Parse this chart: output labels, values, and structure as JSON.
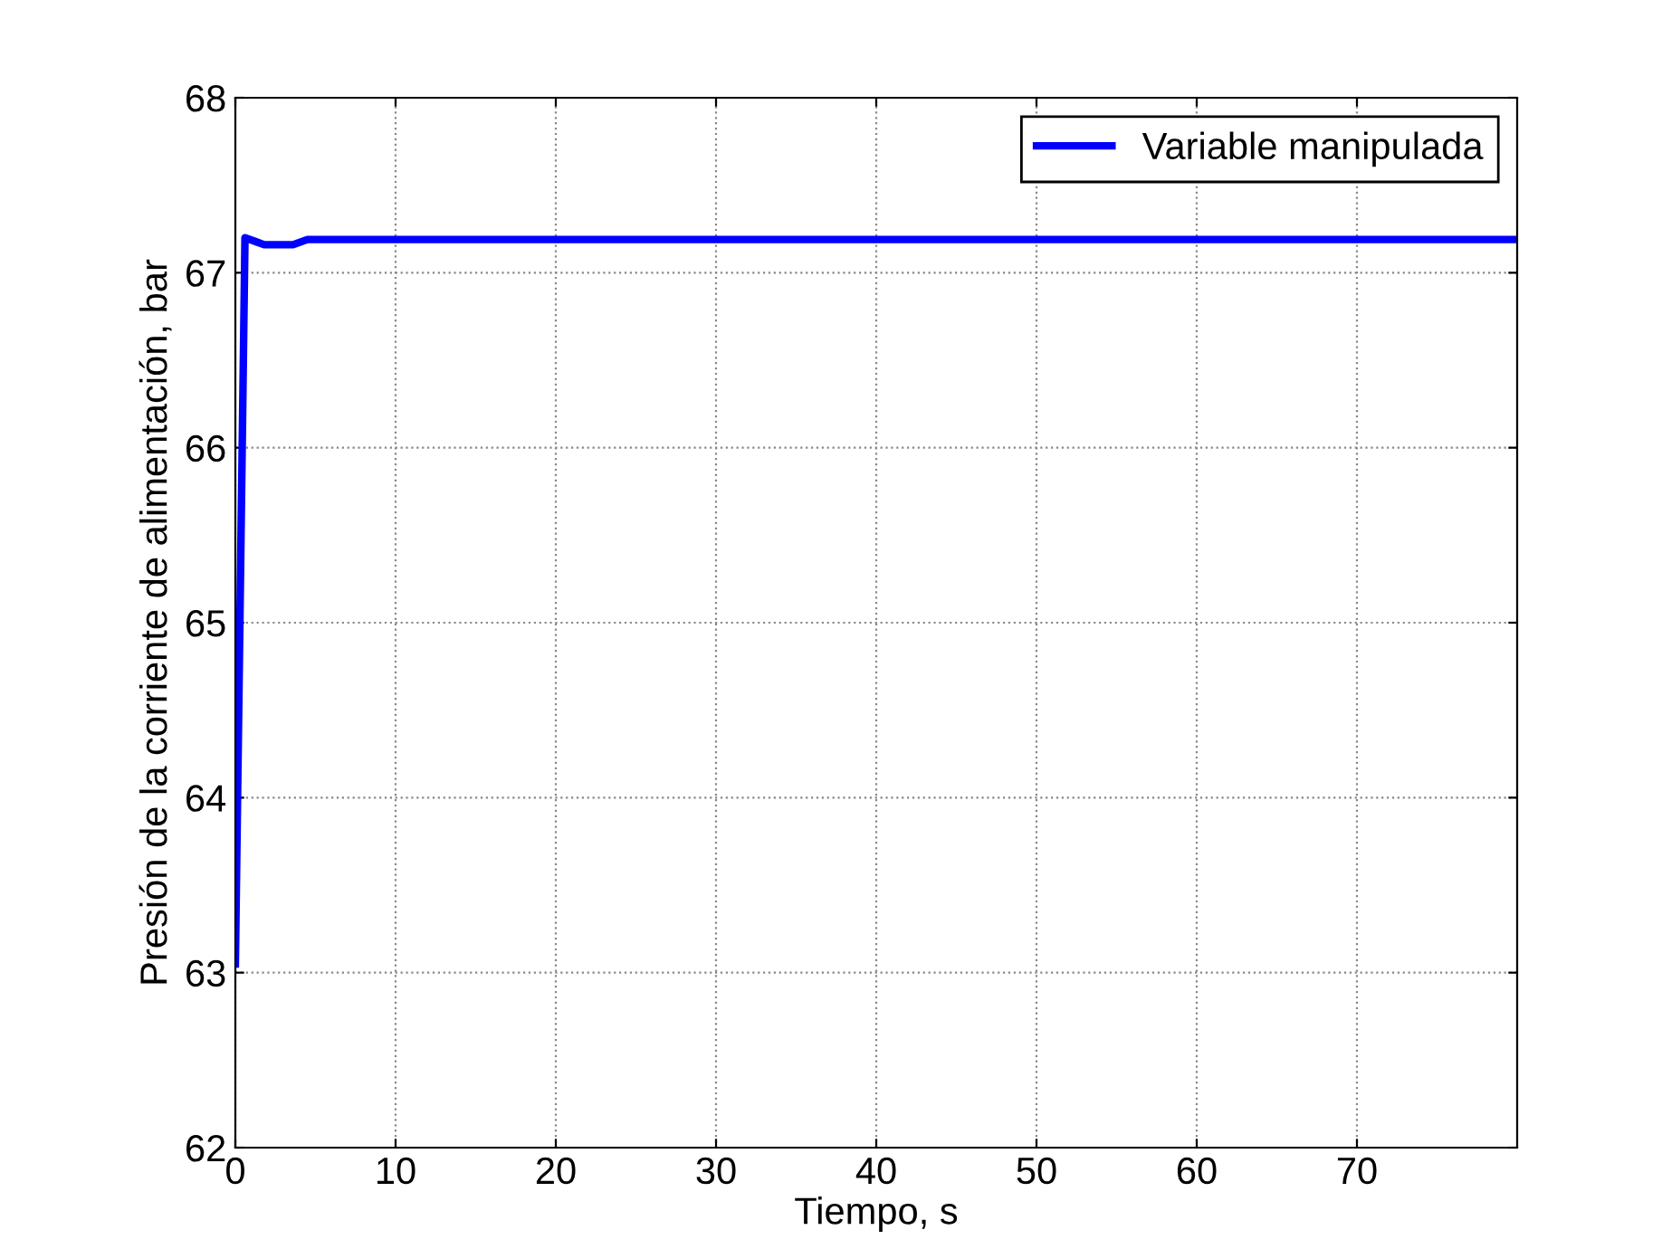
{
  "chart_data": {
    "type": "line",
    "xlabel": "Tiempo, s",
    "ylabel": "Presión de la corriente de alimentación, bar",
    "series": [
      {
        "name": "Variable manipulada",
        "color": "#0000ff",
        "x": [
          0,
          0.6,
          1.2,
          1.8,
          3.6,
          4.5,
          80
        ],
        "values": [
          63.05,
          67.2,
          67.18,
          67.16,
          67.16,
          67.19,
          67.19
        ]
      }
    ],
    "xlim": [
      0,
      80
    ],
    "xticks": [
      0,
      10,
      20,
      30,
      40,
      50,
      60,
      70
    ],
    "ylim": [
      62,
      68
    ],
    "yticks": [
      62,
      63,
      64,
      65,
      66,
      67,
      68
    ],
    "grid": true,
    "legend": "top right",
    "line_style": "solid",
    "marker": "none"
  }
}
